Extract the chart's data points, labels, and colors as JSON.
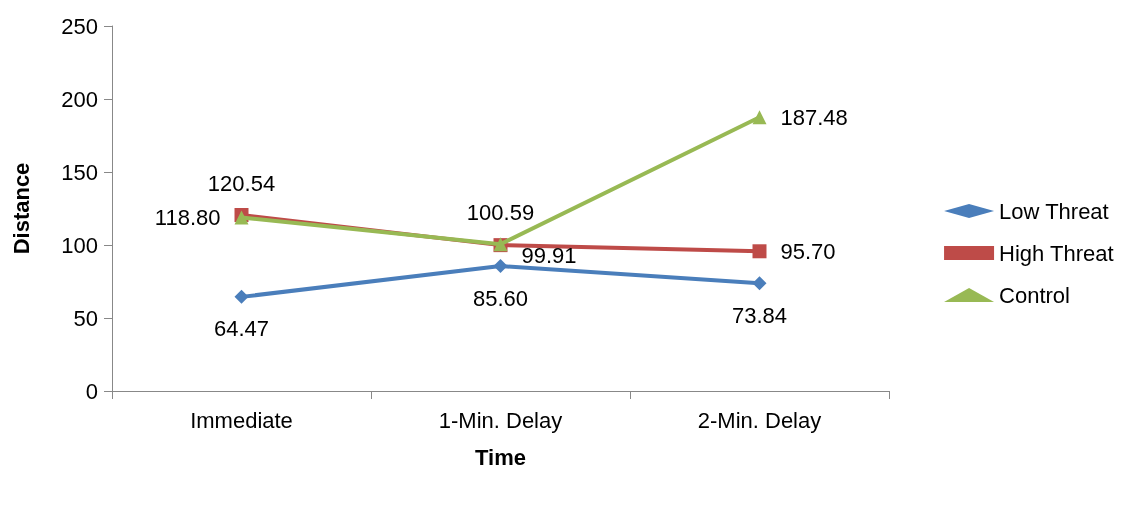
{
  "chart_data": {
    "type": "line",
    "xlabel": "Time",
    "ylabel": "Distance",
    "categories": [
      "Immediate",
      "1-Min. Delay",
      "2-Min. Delay"
    ],
    "series": [
      {
        "name": "Low Threat",
        "color": "#4a7ebb",
        "marker": "diamond",
        "values": [
          64.47,
          85.6,
          73.84
        ],
        "value_labels": [
          "64.47",
          "85.60",
          "73.84"
        ]
      },
      {
        "name": "High Threat",
        "color": "#be4b48",
        "marker": "square",
        "values": [
          120.54,
          99.91,
          95.7
        ],
        "value_labels": [
          "120.54",
          "99.91",
          "95.70"
        ]
      },
      {
        "name": "Control",
        "color": "#98b954",
        "marker": "triangle",
        "values": [
          118.8,
          100.59,
          187.48
        ],
        "value_labels": [
          "118.80",
          "100.59",
          "187.48"
        ]
      }
    ],
    "ylim": [
      0,
      250
    ],
    "yticks": [
      0,
      50,
      100,
      150,
      200,
      250
    ],
    "grid": false,
    "legend": "right",
    "line_style": "solid"
  }
}
